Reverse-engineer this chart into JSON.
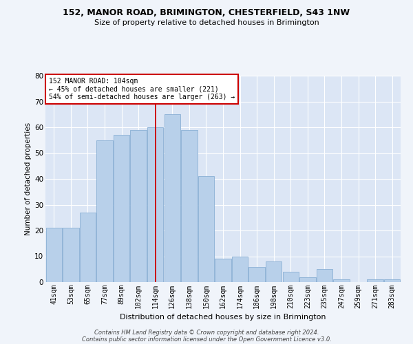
{
  "title": "152, MANOR ROAD, BRIMINGTON, CHESTERFIELD, S43 1NW",
  "subtitle": "Size of property relative to detached houses in Brimington",
  "xlabel": "Distribution of detached houses by size in Brimington",
  "ylabel": "Number of detached properties",
  "categories": [
    "41sqm",
    "53sqm",
    "65sqm",
    "77sqm",
    "89sqm",
    "102sqm",
    "114sqm",
    "126sqm",
    "138sqm",
    "150sqm",
    "162sqm",
    "174sqm",
    "186sqm",
    "198sqm",
    "210sqm",
    "223sqm",
    "235sqm",
    "247sqm",
    "259sqm",
    "271sqm",
    "283sqm"
  ],
  "bar_heights": [
    21,
    21,
    27,
    55,
    57,
    59,
    60,
    65,
    59,
    41,
    9,
    10,
    6,
    8,
    4,
    2,
    5,
    1,
    0,
    1,
    1
  ],
  "bar_color": "#b8d0ea",
  "bar_edge_color": "#8aafd4",
  "bg_color": "#dce6f5",
  "grid_color": "#ffffff",
  "vline_color": "#cc0000",
  "annotation_line1": "152 MANOR ROAD: 104sqm",
  "annotation_line2": "← 45% of detached houses are smaller (221)",
  "annotation_line3": "54% of semi-detached houses are larger (263) →",
  "annotation_box_color": "#ffffff",
  "annotation_box_edge": "#cc0000",
  "footer_line1": "Contains HM Land Registry data © Crown copyright and database right 2024.",
  "footer_line2": "Contains public sector information licensed under the Open Government Licence v3.0.",
  "ylim": [
    0,
    80
  ],
  "yticks": [
    0,
    10,
    20,
    30,
    40,
    50,
    60,
    70,
    80
  ],
  "fig_bg": "#f0f4fa"
}
